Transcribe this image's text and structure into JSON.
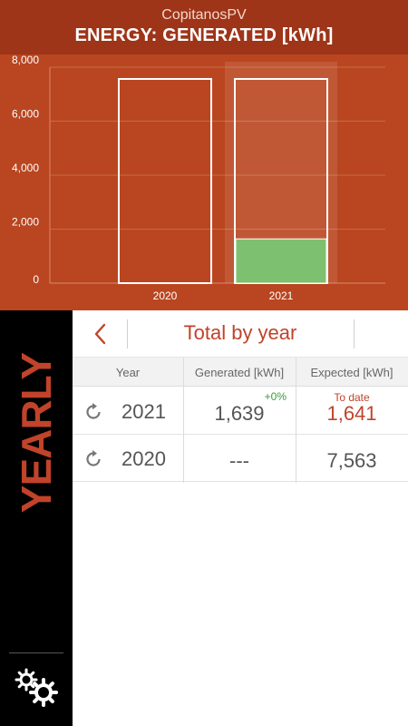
{
  "header": {
    "app_name": "CopitanosPV",
    "title": "ENERGY: GENERATED [kWh]"
  },
  "colors": {
    "header_bg": "#b94620",
    "title_bar_bg": "#9e3418",
    "accent": "#c0432a",
    "generated_bar": "#7cc070",
    "positive": "#3a9a3a"
  },
  "chart_data": {
    "type": "bar",
    "categories": [
      "2020",
      "2021"
    ],
    "series": [
      {
        "values": [
          7563,
          7563
        ]
      },
      {
        "values": [
          0,
          1639
        ]
      }
    ],
    "yticks": [
      "0",
      "2,000",
      "4,000",
      "6,000",
      "8,000"
    ],
    "ylim": [
      0,
      8000
    ],
    "grid": true,
    "highlighted_category": "2021"
  },
  "sidebar": {
    "period_label": "YEARLY",
    "settings_icon": "gears-icon"
  },
  "toolbar": {
    "back_icon": "chevron-left-icon",
    "title": "Total by year"
  },
  "table": {
    "columns": [
      "Year",
      "Generated [kWh]",
      "Expected [kWh]"
    ],
    "rows": [
      {
        "year": "2021",
        "generated": "1,639",
        "change": "+0%",
        "expected_note": "To date",
        "expected": "1,641"
      },
      {
        "year": "2020",
        "generated": "---",
        "change": "",
        "expected_note": "",
        "expected": "7,563"
      }
    ]
  }
}
